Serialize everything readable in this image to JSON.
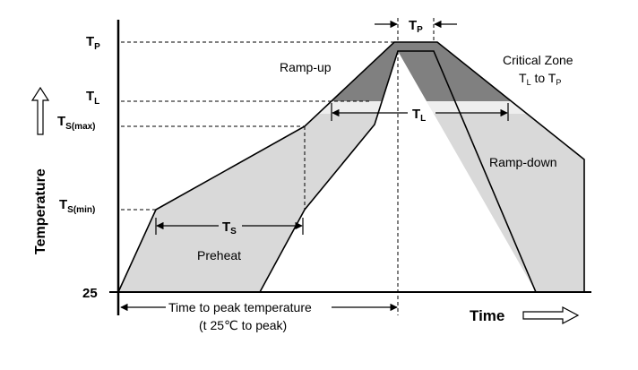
{
  "y_axis": {
    "label": "Temperature",
    "ticks": {
      "tp": {
        "main": "T",
        "sub": "P"
      },
      "tl": {
        "main": "T",
        "sub": "L"
      },
      "ts_max": {
        "main": "T",
        "sub": "S(max)"
      },
      "ts_min": {
        "main": "T",
        "sub": "S(min)"
      },
      "t25": "25"
    }
  },
  "x_axis": {
    "label": "Time"
  },
  "annotations": {
    "tp_span": {
      "main": "T",
      "sub": "P"
    },
    "tl_span": {
      "main": "T",
      "sub": "L"
    },
    "ts_span": {
      "main": "T",
      "sub": "S"
    },
    "ramp_up": "Ramp-up",
    "ramp_down": "Ramp-down",
    "preheat": "Preheat",
    "critical_zone_line1": "Critical Zone",
    "critical_zone_line2": {
      "a": "T",
      "a_sub": "L",
      "mid": " to T",
      "b_sub": "P"
    },
    "time_to_peak_line1": "Time to peak temperature",
    "time_to_peak_line2": "(t 25℃ to peak)"
  },
  "colors": {
    "band_fill": "#d9d9d9",
    "critical_fill": "#808080",
    "line": "#000000"
  }
}
